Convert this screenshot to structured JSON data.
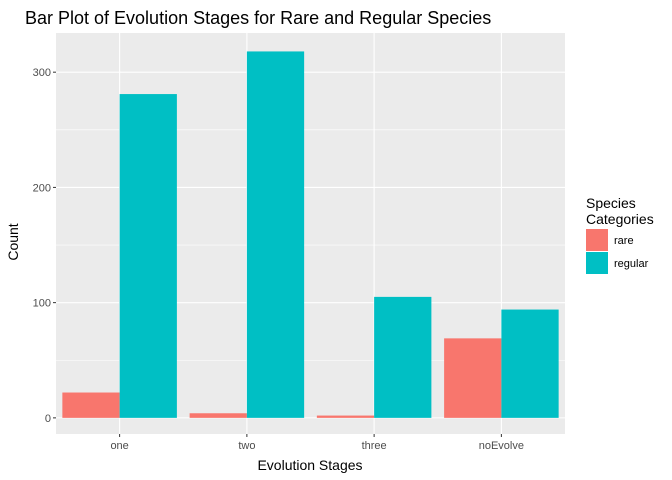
{
  "chart_data": {
    "type": "bar",
    "title": "Bar Plot of Evolution Stages for Rare and Regular Species",
    "xlabel": "Evolution Stages",
    "ylabel": "Count",
    "categories": [
      "one",
      "two",
      "three",
      "noEvolve"
    ],
    "series": [
      {
        "name": "rare",
        "color": "#F8766D",
        "values": [
          22,
          4,
          2,
          69
        ]
      },
      {
        "name": "regular",
        "color": "#00BFC4",
        "values": [
          281,
          318,
          105,
          94
        ]
      }
    ],
    "ylim": [
      -14,
      334
    ],
    "yticks": [
      0,
      100,
      200,
      300
    ],
    "grid": true,
    "panel_background": "#EBEBEB",
    "legend": {
      "title_lines": [
        "Species",
        "Categories"
      ],
      "placement": "right"
    }
  }
}
